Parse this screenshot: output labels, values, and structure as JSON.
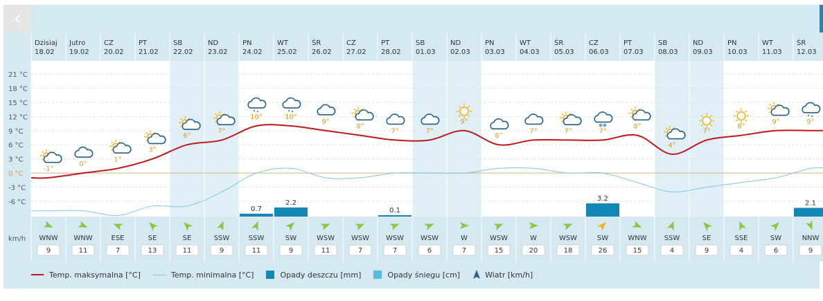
{
  "ui": {
    "back_label": "‹",
    "wind_unit": "km/h"
  },
  "legend": {
    "max_label": "Temp. maksymalna [°C]",
    "min_label": "Temp. minimalna [°C]",
    "rain_label": "Opady deszczu [mm]",
    "snow_label": "Opady śniegu [cm]",
    "wind_label": "Wiatr [km/h]"
  },
  "colors": {
    "max_line": "#c0171b",
    "min_line": "#7fc7e3",
    "rain_bar": "#1387b6",
    "snow_bar": "#5ab8dc",
    "label_orange": "#e39a1a",
    "wind_arrow": "#8cc63f",
    "wind_arrow_strong": "#f2b31b"
  },
  "chart_data": {
    "type": "line",
    "y_ticks": [
      "21 °C",
      "18 °C",
      "15 °C",
      "12 °C",
      "9 °C",
      "6 °C",
      "3 °C",
      "0 °C",
      "-3 °C",
      "-6 °C"
    ],
    "y_tick_values": [
      21,
      18,
      15,
      12,
      9,
      6,
      3,
      0,
      -3,
      -6
    ],
    "ylim": [
      -9,
      23
    ],
    "days": [
      {
        "day": "Dzisiaj",
        "date": "18.02",
        "max": -1,
        "max_label": "-1°",
        "min": -8,
        "icon": "partly-cloudy-sun-icon",
        "rain": null,
        "rain_label": "",
        "wind_dir": "WNW",
        "wind": "9",
        "weekend": false
      },
      {
        "day": "Jutro",
        "date": "19.02",
        "max": 0,
        "max_label": "0°",
        "min": -8,
        "icon": "cloudy-icon",
        "rain": null,
        "rain_label": "",
        "wind_dir": "WNW",
        "wind": "11",
        "weekend": false
      },
      {
        "day": "CZ",
        "date": "20.02",
        "max": 1,
        "max_label": "1°",
        "min": -9,
        "icon": "partly-cloudy-sun-icon",
        "rain": null,
        "rain_label": "",
        "wind_dir": "ESE",
        "wind": "7",
        "weekend": false
      },
      {
        "day": "PT",
        "date": "21.02",
        "max": 3,
        "max_label": "3°",
        "min": -7,
        "icon": "partly-cloudy-sun-icon",
        "rain": null,
        "rain_label": "",
        "wind_dir": "SE",
        "wind": "13",
        "weekend": false
      },
      {
        "day": "SB",
        "date": "22.02",
        "max": 6,
        "max_label": "6°",
        "min": -7,
        "icon": "partly-cloudy-sun-icon",
        "rain": null,
        "rain_label": "",
        "wind_dir": "SE",
        "wind": "11",
        "weekend": true
      },
      {
        "day": "ND",
        "date": "23.02",
        "max": 7,
        "max_label": "7°",
        "min": -4,
        "icon": "partly-cloudy-sun-icon",
        "rain": null,
        "rain_label": "",
        "wind_dir": "SSW",
        "wind": "9",
        "weekend": true
      },
      {
        "day": "PN",
        "date": "24.02",
        "max": 10,
        "max_label": "10°",
        "min": 0,
        "icon": "rain-cloud-icon",
        "rain": 0.7,
        "rain_label": "0.7",
        "wind_dir": "SSW",
        "wind": "11",
        "weekend": false
      },
      {
        "day": "WT",
        "date": "25.02",
        "max": 10,
        "max_label": "10°",
        "min": 1,
        "icon": "rain-cloud-icon",
        "rain": 2.2,
        "rain_label": "2.2",
        "wind_dir": "SW",
        "wind": "9",
        "weekend": false
      },
      {
        "day": "ŚR",
        "date": "26.02",
        "max": 9,
        "max_label": "9°",
        "min": -1,
        "icon": "cloudy-icon",
        "rain": null,
        "rain_label": "",
        "wind_dir": "WSW",
        "wind": "11",
        "weekend": false
      },
      {
        "day": "CZ",
        "date": "27.02",
        "max": 8,
        "max_label": "8°",
        "min": -1,
        "icon": "partly-cloudy-sun-icon",
        "rain": null,
        "rain_label": "",
        "wind_dir": "WSW",
        "wind": "7",
        "weekend": false
      },
      {
        "day": "PT",
        "date": "28.02",
        "max": 7,
        "max_label": "7°",
        "min": 0,
        "icon": "cloudy-icon",
        "rain": 0.1,
        "rain_label": "0.1",
        "wind_dir": "WSW",
        "wind": "7",
        "weekend": false
      },
      {
        "day": "SB",
        "date": "01.03",
        "max": 7,
        "max_label": "7°",
        "min": 0,
        "icon": "cloudy-icon",
        "rain": null,
        "rain_label": "",
        "wind_dir": "WSW",
        "wind": "6",
        "weekend": true
      },
      {
        "day": "ND",
        "date": "02.03",
        "max": 9,
        "max_label": "9°",
        "min": 0,
        "icon": "sunny-icon",
        "rain": null,
        "rain_label": "",
        "wind_dir": "W",
        "wind": "7",
        "weekend": true
      },
      {
        "day": "PN",
        "date": "03.03",
        "max": 6,
        "max_label": "6°",
        "min": 1,
        "icon": "cloudy-icon",
        "rain": null,
        "rain_label": "",
        "wind_dir": "WSW",
        "wind": "15",
        "weekend": false
      },
      {
        "day": "WT",
        "date": "04.03",
        "max": 7,
        "max_label": "7°",
        "min": 1,
        "icon": "cloudy-icon",
        "rain": null,
        "rain_label": "",
        "wind_dir": "W",
        "wind": "20",
        "weekend": false
      },
      {
        "day": "ŚR",
        "date": "05.03",
        "max": 7,
        "max_label": "7°",
        "min": 0,
        "icon": "partly-cloudy-sun-icon",
        "rain": null,
        "rain_label": "",
        "wind_dir": "WSW",
        "wind": "18",
        "weekend": false
      },
      {
        "day": "CZ",
        "date": "06.03",
        "max": 7,
        "max_label": "7°",
        "min": 0,
        "icon": "snow-cloud-icon",
        "rain": 3.2,
        "rain_label": "3.2",
        "wind_dir": "SW",
        "wind": "26",
        "weekend": false
      },
      {
        "day": "PT",
        "date": "07.03",
        "max": 8,
        "max_label": "8°",
        "min": -2,
        "icon": "partly-cloudy-sun-icon",
        "rain": null,
        "rain_label": "",
        "wind_dir": "WNW",
        "wind": "15",
        "weekend": false
      },
      {
        "day": "SB",
        "date": "08.03",
        "max": 4,
        "max_label": "4°",
        "min": -4,
        "icon": "partly-cloudy-sun-icon",
        "rain": null,
        "rain_label": "",
        "wind_dir": "SSW",
        "wind": "4",
        "weekend": true
      },
      {
        "day": "ND",
        "date": "09.03",
        "max": 7,
        "max_label": "7°",
        "min": -3,
        "icon": "sunny-icon",
        "rain": null,
        "rain_label": "",
        "wind_dir": "SE",
        "wind": "9",
        "weekend": true
      },
      {
        "day": "PN",
        "date": "10.03",
        "max": 8,
        "max_label": "8°",
        "min": -2,
        "icon": "sunny-icon",
        "rain": null,
        "rain_label": "",
        "wind_dir": "SSE",
        "wind": "4",
        "weekend": false
      },
      {
        "day": "WT",
        "date": "11.03",
        "max": 9,
        "max_label": "9°",
        "min": -1,
        "icon": "partly-cloudy-sun-icon",
        "rain": null,
        "rain_label": "",
        "wind_dir": "SW",
        "wind": "6",
        "weekend": false
      },
      {
        "day": "ŚR",
        "date": "12.03",
        "max": 9,
        "max_label": "9°",
        "min": 1,
        "icon": "rain-cloud-icon",
        "rain": 2.1,
        "rain_label": "2.1",
        "wind_dir": "NNW",
        "wind": "9",
        "weekend": false
      }
    ]
  }
}
